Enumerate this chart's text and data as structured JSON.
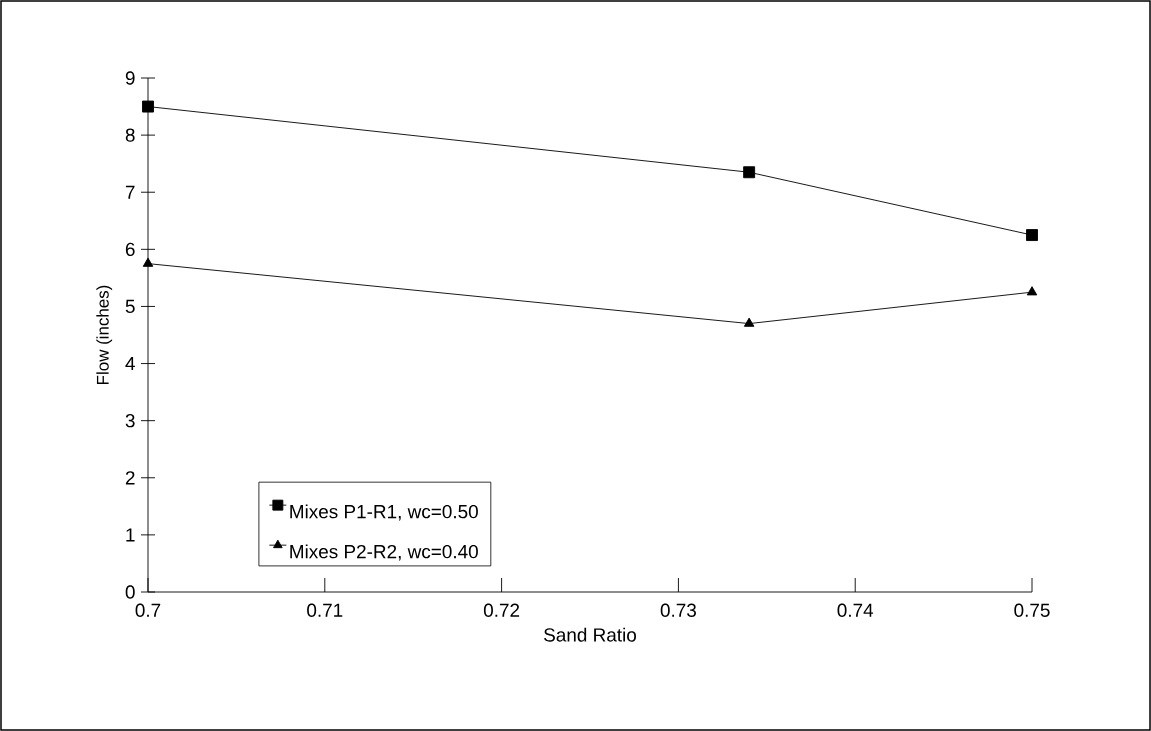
{
  "chart_data": {
    "type": "line",
    "xlabel": "Sand Ratio",
    "ylabel": "Flow (inches)",
    "x": [
      0.7,
      0.734,
      0.75
    ],
    "series": [
      {
        "name": "Mixes P1-R1, wc=0.50",
        "color": "#000000",
        "marker": "square",
        "values": [
          8.5,
          7.35,
          6.25
        ]
      },
      {
        "name": "Mixes P2-R2, wc=0.40",
        "color": "#000000",
        "marker": "triangle",
        "values": [
          5.75,
          4.7,
          5.25
        ]
      }
    ],
    "xlim": [
      0.7,
      0.75
    ],
    "xticks": [
      0.7,
      0.71,
      0.72,
      0.73,
      0.74,
      0.75
    ],
    "ylim": [
      0,
      9
    ],
    "yticks": [
      0,
      1,
      2,
      3,
      4,
      5,
      6,
      7,
      8,
      9
    ],
    "grid": false,
    "legend": "bottom left",
    "line_style": "solid"
  }
}
